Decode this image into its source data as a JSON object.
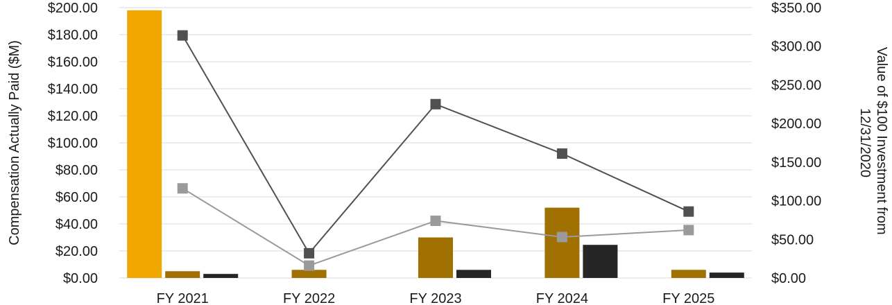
{
  "chart_data": {
    "type": "bar",
    "categories": [
      "FY 2021",
      "FY 2022",
      "FY 2023",
      "FY 2024",
      "FY 2025"
    ],
    "bar_series": [
      {
        "values": [
          198.0,
          null,
          null,
          null,
          null
        ],
        "color": "#F0A800"
      },
      {
        "values": [
          5.0,
          6.0,
          30.0,
          52.0,
          6.0
        ],
        "color": "#A07000"
      },
      {
        "values": [
          3.0,
          null,
          6.0,
          24.5,
          4.0
        ],
        "color": "#262626"
      }
    ],
    "line_series": [
      {
        "values": [
          314.0,
          32.0,
          225.0,
          161.0,
          86.0
        ],
        "color": "#505050",
        "axis": "right"
      },
      {
        "values": [
          116.0,
          16.0,
          74.0,
          53.0,
          62.0
        ],
        "color": "#9A9A9A",
        "axis": "right"
      }
    ],
    "left_axis": {
      "label": "Compensation Actually Paid ($M)",
      "ylim": [
        0,
        200
      ],
      "ticks": [
        "$0.00",
        "$20.00",
        "$40.00",
        "$60.00",
        "$80.00",
        "$100.00",
        "$120.00",
        "$140.00",
        "$160.00",
        "$180.00",
        "$200.00"
      ]
    },
    "right_axis": {
      "label_lines": [
        "Value of $100 Investment from",
        "12/31/2020"
      ],
      "ylim": [
        0,
        350
      ],
      "ticks": [
        "$0.00",
        "$50.00",
        "$100.00",
        "$150.00",
        "$200.00",
        "$250.00",
        "$300.00",
        "$350.00"
      ]
    },
    "grid": true,
    "legend": "none",
    "gridline_color": "#E6E6E6"
  }
}
